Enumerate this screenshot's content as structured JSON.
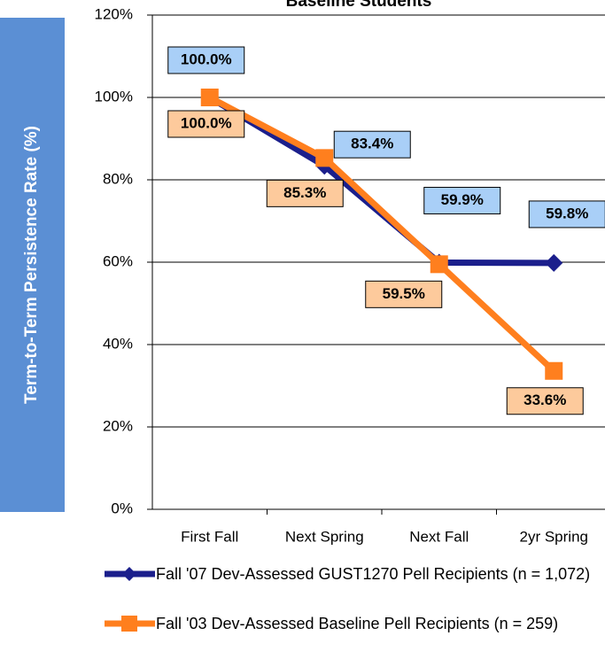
{
  "chart_data": {
    "type": "line",
    "title": "Baseline Students",
    "ylabel": "Term-to-Term Persistence Rate (%)",
    "categories": [
      "First Fall",
      "Next Spring",
      "Next Fall",
      "2yr Spring"
    ],
    "ylim": [
      0,
      120
    ],
    "yticks": [
      {
        "value": 0,
        "label": "0%"
      },
      {
        "value": 20,
        "label": "20%"
      },
      {
        "value": 40,
        "label": "40%"
      },
      {
        "value": 60,
        "label": "60%"
      },
      {
        "value": 80,
        "label": "80%"
      },
      {
        "value": 100,
        "label": "100%"
      },
      {
        "value": 120,
        "label": "120%"
      }
    ],
    "grid": true,
    "series": [
      {
        "name": "Fall '07 Dev-Assessed GUST1270 Pell Recipients (n = 1,072)",
        "color": "#1b1f8c",
        "marker": "diamond",
        "label_fill": "#a9cff7",
        "values": [
          100.0,
          83.4,
          59.9,
          59.8
        ],
        "value_labels": [
          "100.0%",
          "83.4%",
          "59.9%",
          "59.8%"
        ]
      },
      {
        "name": "Fall '03 Dev-Assessed Baseline Pell Recipients (n = 259)",
        "color": "#ff7f1e",
        "marker": "square",
        "label_fill": "#fdca9c",
        "values": [
          100.0,
          85.3,
          59.5,
          33.6
        ],
        "value_labels": [
          "100.0%",
          "85.3%",
          "59.5%",
          "33.6%"
        ]
      }
    ]
  }
}
